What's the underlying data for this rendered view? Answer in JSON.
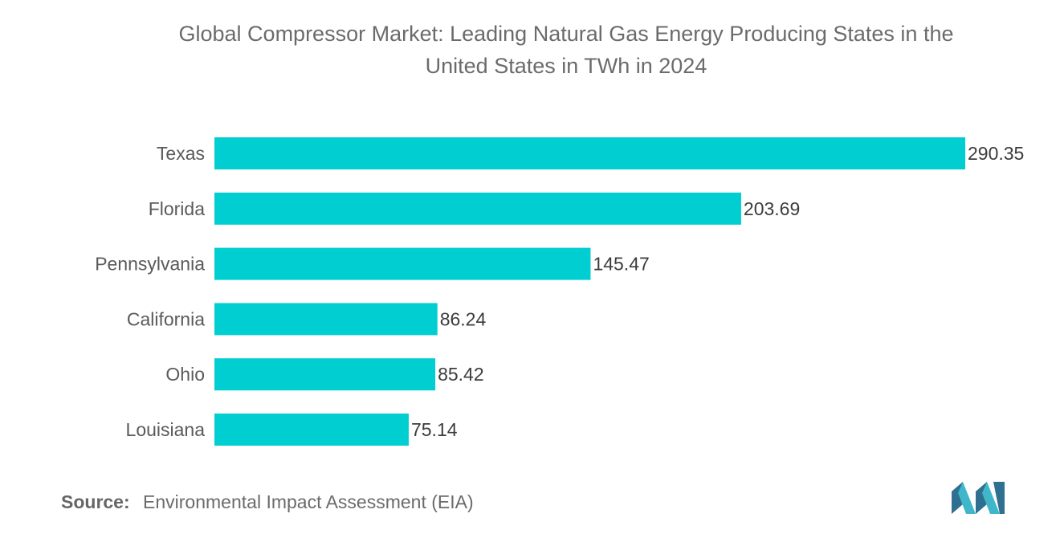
{
  "chart_data": {
    "type": "bar",
    "orientation": "horizontal",
    "title_lines": [
      "Global Compressor Market: Leading Natural Gas Energy Producing States in the",
      "United States in TWh in 2024"
    ],
    "categories": [
      "Texas",
      "Florida",
      "Pennsylvania",
      "California",
      "Ohio",
      "Louisiana"
    ],
    "values": [
      290.35,
      203.69,
      145.47,
      86.24,
      85.42,
      75.14
    ],
    "value_labels": [
      "290.35",
      "203.69",
      "145.47",
      "86.24",
      "85.42",
      "75.14"
    ],
    "xlim": [
      0,
      290.35
    ],
    "grid": false,
    "bar_color": "#00ced1",
    "unit": "TWh"
  },
  "footer": {
    "source_label": "Source:",
    "source_text": "Environmental Impact Assessment (EIA)"
  },
  "logo": {
    "icon": "mordor-intelligence-logo-icon",
    "colors": [
      "#2f6f8f",
      "#3fb6c9"
    ]
  }
}
